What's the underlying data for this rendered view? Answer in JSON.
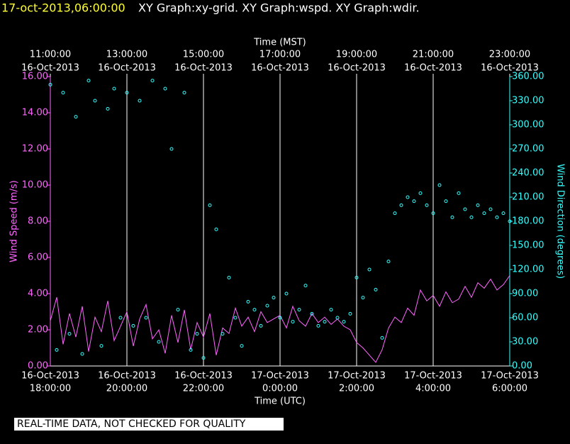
{
  "header": {
    "timestamp": "17-oct-2013,06:00:00",
    "graphs": "XY Graph:xy-grid.  XY Graph:wspd.  XY Graph:wdir."
  },
  "chart_data": {
    "type": "line",
    "x_label": "Time (UTC)",
    "x2_label": "Time (MST)",
    "y_label": "Wind Speed (m/s)",
    "y2_label": "Wind Direction (degrees)",
    "xlim": [
      "2013-10-16T18:00Z",
      "2013-10-17T06:00Z"
    ],
    "xticks": [
      {
        "value": "2013-10-16T18:00Z",
        "label": [
          "16-Oct-2013",
          "18:00:00"
        ]
      },
      {
        "value": "2013-10-16T20:00Z",
        "label": [
          "16-Oct-2013",
          "20:00:00"
        ]
      },
      {
        "value": "2013-10-16T22:00Z",
        "label": [
          "16-Oct-2013",
          "22:00:00"
        ]
      },
      {
        "value": "2013-10-17T00:00Z",
        "label": [
          "17-Oct-2013",
          "0:00:00"
        ]
      },
      {
        "value": "2013-10-17T02:00Z",
        "label": [
          "17-Oct-2013",
          "2:00:00"
        ]
      },
      {
        "value": "2013-10-17T04:00Z",
        "label": [
          "17-Oct-2013",
          "4:00:00"
        ]
      },
      {
        "value": "2013-10-17T06:00Z",
        "label": [
          "17-Oct-2013",
          "6:00:00"
        ]
      }
    ],
    "x2ticks": [
      {
        "value": "2013-10-16T18:00Z",
        "label": [
          "11:00:00",
          "16-Oct-2013"
        ]
      },
      {
        "value": "2013-10-16T20:00Z",
        "label": [
          "13:00:00",
          "16-Oct-2013"
        ]
      },
      {
        "value": "2013-10-16T22:00Z",
        "label": [
          "15:00:00",
          "16-Oct-2013"
        ]
      },
      {
        "value": "2013-10-17T00:00Z",
        "label": [
          "17:00:00",
          "16-Oct-2013"
        ]
      },
      {
        "value": "2013-10-17T02:00Z",
        "label": [
          "19:00:00",
          "16-Oct-2013"
        ]
      },
      {
        "value": "2013-10-17T04:00Z",
        "label": [
          "21:00:00",
          "16-Oct-2013"
        ]
      },
      {
        "value": "2013-10-17T06:00Z",
        "label": [
          "23:00:00",
          "16-Oct-2013"
        ]
      }
    ],
    "ylim": [
      0,
      16
    ],
    "yticks": [
      {
        "value": 0,
        "label": "0.00"
      },
      {
        "value": 2,
        "label": "2.00"
      },
      {
        "value": 4,
        "label": "4.00"
      },
      {
        "value": 6,
        "label": "6.00"
      },
      {
        "value": 8,
        "label": "8.00"
      },
      {
        "value": 10,
        "label": "10.00"
      },
      {
        "value": 12,
        "label": "12.00"
      },
      {
        "value": 14,
        "label": "14.00"
      },
      {
        "value": 16,
        "label": "16.00"
      }
    ],
    "y2lim": [
      0,
      360
    ],
    "y2ticks": [
      {
        "value": 0,
        "label": "0.00"
      },
      {
        "value": 30,
        "label": "30.00"
      },
      {
        "value": 60,
        "label": "60.00"
      },
      {
        "value": 90,
        "label": "90.00"
      },
      {
        "value": 120,
        "label": "120.00"
      },
      {
        "value": 150,
        "label": "150.00"
      },
      {
        "value": 180,
        "label": "180.00"
      },
      {
        "value": 210,
        "label": "210.00"
      },
      {
        "value": 240,
        "label": "240.00"
      },
      {
        "value": 270,
        "label": "270.00"
      },
      {
        "value": 300,
        "label": "300.00"
      },
      {
        "value": 330,
        "label": "330.00"
      },
      {
        "value": 360,
        "label": "360.00"
      }
    ],
    "grid": true,
    "y_color": "#ff66ff",
    "y2_color": "#33ffff",
    "x": [
      "2013-10-16T18:00Z",
      "2013-10-16T18:10Z",
      "2013-10-16T18:20Z",
      "2013-10-16T18:30Z",
      "2013-10-16T18:40Z",
      "2013-10-16T18:50Z",
      "2013-10-16T19:00Z",
      "2013-10-16T19:10Z",
      "2013-10-16T19:20Z",
      "2013-10-16T19:30Z",
      "2013-10-16T19:40Z",
      "2013-10-16T19:50Z",
      "2013-10-16T20:00Z",
      "2013-10-16T20:10Z",
      "2013-10-16T20:20Z",
      "2013-10-16T20:30Z",
      "2013-10-16T20:40Z",
      "2013-10-16T20:50Z",
      "2013-10-16T21:00Z",
      "2013-10-16T21:10Z",
      "2013-10-16T21:20Z",
      "2013-10-16T21:30Z",
      "2013-10-16T21:40Z",
      "2013-10-16T21:50Z",
      "2013-10-16T22:00Z",
      "2013-10-16T22:10Z",
      "2013-10-16T22:20Z",
      "2013-10-16T22:30Z",
      "2013-10-16T22:40Z",
      "2013-10-16T22:50Z",
      "2013-10-16T23:00Z",
      "2013-10-16T23:10Z",
      "2013-10-16T23:20Z",
      "2013-10-16T23:30Z",
      "2013-10-16T23:40Z",
      "2013-10-16T23:50Z",
      "2013-10-17T00:00Z",
      "2013-10-17T00:10Z",
      "2013-10-17T00:20Z",
      "2013-10-17T00:30Z",
      "2013-10-17T00:40Z",
      "2013-10-17T00:50Z",
      "2013-10-17T01:00Z",
      "2013-10-17T01:10Z",
      "2013-10-17T01:20Z",
      "2013-10-17T01:30Z",
      "2013-10-17T01:40Z",
      "2013-10-17T01:50Z",
      "2013-10-17T02:00Z",
      "2013-10-17T02:10Z",
      "2013-10-17T02:20Z",
      "2013-10-17T02:30Z",
      "2013-10-17T02:40Z",
      "2013-10-17T02:50Z",
      "2013-10-17T03:00Z",
      "2013-10-17T03:10Z",
      "2013-10-17T03:20Z",
      "2013-10-17T03:30Z",
      "2013-10-17T03:40Z",
      "2013-10-17T03:50Z",
      "2013-10-17T04:00Z",
      "2013-10-17T04:10Z",
      "2013-10-17T04:20Z",
      "2013-10-17T04:30Z",
      "2013-10-17T04:40Z",
      "2013-10-17T04:50Z",
      "2013-10-17T05:00Z",
      "2013-10-17T05:10Z",
      "2013-10-17T05:20Z",
      "2013-10-17T05:30Z",
      "2013-10-17T05:40Z",
      "2013-10-17T05:50Z",
      "2013-10-17T06:00Z"
    ],
    "series": [
      {
        "name": "wspd",
        "style": "line",
        "color": "#ff66ff",
        "values": [
          2.5,
          3.8,
          1.2,
          2.9,
          1.6,
          3.3,
          0.8,
          2.7,
          1.9,
          3.6,
          1.4,
          2.2,
          3.0,
          1.1,
          2.6,
          3.4,
          1.5,
          2.0,
          0.7,
          2.8,
          1.3,
          3.1,
          0.9,
          2.4,
          1.6,
          2.9,
          0.6,
          2.1,
          1.8,
          3.2,
          2.2,
          2.7,
          1.9,
          3.0,
          2.4,
          2.6,
          2.8,
          2.1,
          3.3,
          2.5,
          2.2,
          2.9,
          2.4,
          2.7,
          2.3,
          2.6,
          2.2,
          2.0,
          1.3,
          1.0,
          0.6,
          0.2,
          0.9,
          2.1,
          2.7,
          2.4,
          3.2,
          2.8,
          4.2,
          3.6,
          3.9,
          3.3,
          4.1,
          3.5,
          3.7,
          4.4,
          3.8,
          4.6,
          4.3,
          4.8,
          4.2,
          4.5,
          5.0
        ]
      },
      {
        "name": "wdir",
        "style": "markers",
        "axis": "y2",
        "color": "#33ffff",
        "values": [
          350,
          20,
          340,
          40,
          310,
          15,
          355,
          330,
          25,
          320,
          345,
          60,
          340,
          50,
          330,
          60,
          355,
          30,
          345,
          270,
          70,
          340,
          20,
          40,
          10,
          200,
          170,
          40,
          110,
          60,
          25,
          80,
          70,
          50,
          75,
          85,
          60,
          90,
          55,
          70,
          100,
          65,
          50,
          55,
          70,
          60,
          55,
          65,
          110,
          85,
          120,
          95,
          35,
          130,
          190,
          200,
          210,
          205,
          215,
          200,
          190,
          225,
          205,
          185,
          215,
          195,
          185,
          200,
          190,
          195,
          185,
          190,
          180
        ]
      }
    ]
  },
  "footer": "REAL-TIME DATA, NOT CHECKED FOR QUALITY"
}
